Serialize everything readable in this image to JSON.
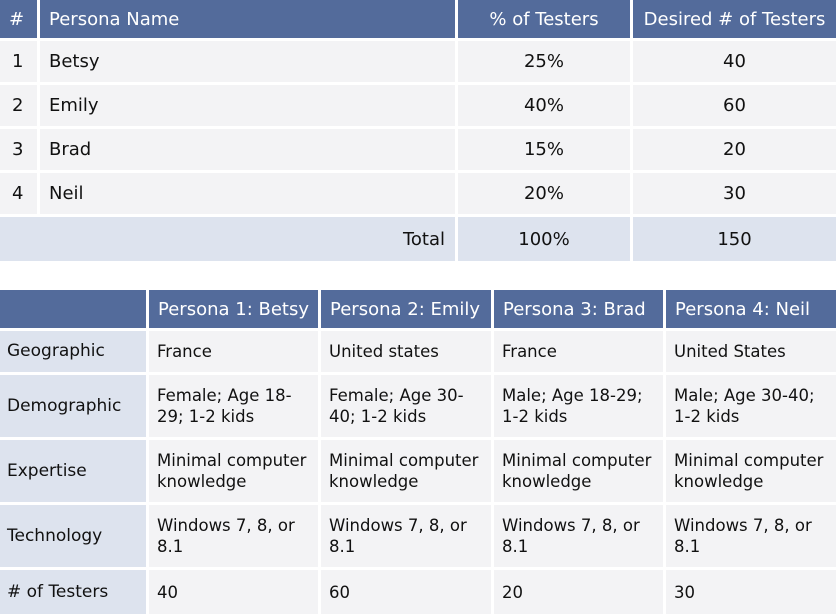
{
  "table1": {
    "headers": [
      "#",
      "Persona Name",
      "% of Testers",
      "Desired # of Testers"
    ],
    "rows": [
      {
        "num": "1",
        "name": "Betsy",
        "pct": "25%",
        "desired": "40"
      },
      {
        "num": "2",
        "name": "Emily",
        "pct": "40%",
        "desired": "60"
      },
      {
        "num": "3",
        "name": "Brad",
        "pct": "15%",
        "desired": "20"
      },
      {
        "num": "4",
        "name": "Neil",
        "pct": "20%",
        "desired": "30"
      }
    ],
    "total": {
      "label": "Total",
      "pct": "100%",
      "desired": "150"
    }
  },
  "table2": {
    "headers": [
      "",
      "Persona 1: Betsy",
      "Persona 2: Emily",
      "Persona 3: Brad",
      "Persona 4: Neil"
    ],
    "rows": [
      {
        "label": "Geographic",
        "cells": [
          "France",
          "United states",
          "France",
          "United States"
        ]
      },
      {
        "label": "Demographic",
        "cells": [
          "Female; Age 18-\n29; 1-2 kids",
          "Female; Age 30-\n40; 1-2 kids",
          "Male; Age 18-29;\n1-2 kids",
          "Male; Age 30-40;\n1-2 kids"
        ]
      },
      {
        "label": "Expertise",
        "cells": [
          "Minimal computer\nknowledge",
          "Minimal computer\nknowledge",
          "Minimal computer\nknowledge",
          "Minimal computer\nknowledge"
        ]
      },
      {
        "label": "Technology",
        "cells": [
          "Windows 7, 8, or\n8.1",
          "Windows 7, 8, or\n8.1",
          "Windows 7, 8, or\n8.1",
          "Windows 7, 8, or\n8.1"
        ]
      },
      {
        "label": "# of Testers",
        "cells": [
          "40",
          "60",
          "20",
          "30"
        ]
      }
    ]
  }
}
